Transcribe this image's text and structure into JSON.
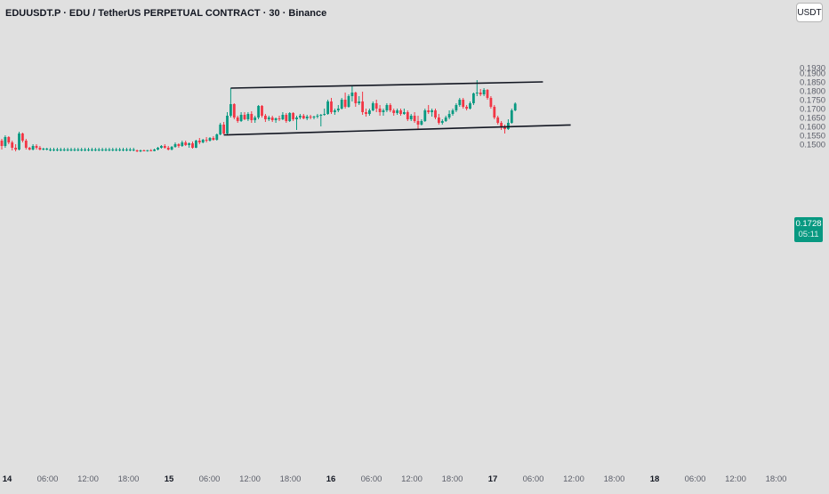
{
  "symbol_title": "EDUUSDT.P · EDU / TetherUS PERPETUAL CONTRACT · 30 · Binance",
  "currency_label": "USDT",
  "last_price": "0.1728",
  "countdown": "05:11",
  "colors": {
    "background": "#e0e0e0",
    "up": "#089981",
    "down": "#f23645",
    "trendline": "#131722",
    "axis_text": "#5d606b"
  },
  "chart_data": {
    "type": "candlestick",
    "title": "EDUUSDT.P · EDU / TetherUS PERPETUAL CONTRACT · 30 · Binance",
    "timeframe": "30",
    "exchange": "Binance",
    "y_axis": {
      "position": "right",
      "tick_labels": [
        "0.1930",
        "0.1900",
        "0.1850",
        "0.1800",
        "0.1750",
        "0.1700",
        "0.1650",
        "0.1600",
        "0.1550",
        "0.1500"
      ]
    },
    "x_axis": {
      "tick_labels": [
        "14",
        "06:00",
        "12:00",
        "18:00",
        "15",
        "06:00",
        "12:00",
        "18:00",
        "16",
        "06:00",
        "12:00",
        "18:00",
        "17",
        "06:00",
        "12:00",
        "18:00",
        "18",
        "06:00",
        "12:00",
        "18:00"
      ],
      "bold_labels": [
        "14",
        "15",
        "16",
        "17",
        "18"
      ]
    },
    "ohlc": [
      [
        0.152,
        0.153,
        0.147,
        0.149
      ],
      [
        0.149,
        0.155,
        0.148,
        0.154
      ],
      [
        0.154,
        0.1545,
        0.15,
        0.151
      ],
      [
        0.151,
        0.152,
        0.1465,
        0.148
      ],
      [
        0.148,
        0.15,
        0.146,
        0.147
      ],
      [
        0.147,
        0.157,
        0.1465,
        0.156
      ],
      [
        0.156,
        0.1565,
        0.151,
        0.152
      ],
      [
        0.152,
        0.153,
        0.147,
        0.148
      ],
      [
        0.148,
        0.1485,
        0.1465,
        0.147
      ],
      [
        0.147,
        0.15,
        0.1465,
        0.149
      ],
      [
        0.149,
        0.15,
        0.147,
        0.148
      ],
      [
        0.148,
        0.149,
        0.1465,
        0.147
      ],
      [
        0.147,
        0.148,
        0.1465,
        0.1475
      ],
      [
        0.147,
        0.148,
        0.1465,
        0.1475
      ],
      [
        0.147,
        0.148,
        0.146,
        0.147
      ],
      [
        0.147,
        0.148,
        0.146,
        0.147
      ],
      [
        0.147,
        0.148,
        0.146,
        0.147
      ],
      [
        0.147,
        0.148,
        0.146,
        0.147
      ],
      [
        0.147,
        0.148,
        0.146,
        0.147
      ],
      [
        0.147,
        0.148,
        0.146,
        0.147
      ],
      [
        0.147,
        0.148,
        0.146,
        0.147
      ],
      [
        0.147,
        0.148,
        0.146,
        0.147
      ],
      [
        0.147,
        0.148,
        0.146,
        0.147
      ],
      [
        0.147,
        0.148,
        0.146,
        0.147
      ],
      [
        0.147,
        0.148,
        0.146,
        0.147
      ],
      [
        0.147,
        0.148,
        0.146,
        0.147
      ],
      [
        0.147,
        0.148,
        0.146,
        0.147
      ],
      [
        0.147,
        0.148,
        0.146,
        0.147
      ],
      [
        0.147,
        0.148,
        0.146,
        0.147
      ],
      [
        0.147,
        0.148,
        0.146,
        0.147
      ],
      [
        0.147,
        0.148,
        0.146,
        0.147
      ],
      [
        0.147,
        0.148,
        0.146,
        0.147
      ],
      [
        0.147,
        0.148,
        0.146,
        0.147
      ],
      [
        0.147,
        0.148,
        0.146,
        0.147
      ],
      [
        0.147,
        0.148,
        0.146,
        0.147
      ],
      [
        0.147,
        0.148,
        0.146,
        0.147
      ],
      [
        0.147,
        0.148,
        0.146,
        0.147
      ],
      [
        0.147,
        0.148,
        0.146,
        0.147
      ],
      [
        0.147,
        0.148,
        0.146,
        0.147
      ],
      [
        0.1465,
        0.147,
        0.1455,
        0.146
      ],
      [
        0.146,
        0.147,
        0.1455,
        0.1465
      ],
      [
        0.1465,
        0.147,
        0.146,
        0.1462
      ],
      [
        0.1462,
        0.1468,
        0.1458,
        0.1466
      ],
      [
        0.1466,
        0.1472,
        0.146,
        0.1462
      ],
      [
        0.1462,
        0.1475,
        0.146,
        0.147
      ],
      [
        0.147,
        0.1485,
        0.1465,
        0.148
      ],
      [
        0.148,
        0.1495,
        0.1475,
        0.149
      ],
      [
        0.149,
        0.15,
        0.1475,
        0.148
      ],
      [
        0.148,
        0.149,
        0.1465,
        0.147
      ],
      [
        0.147,
        0.149,
        0.1465,
        0.1485
      ],
      [
        0.1485,
        0.151,
        0.148,
        0.15
      ],
      [
        0.15,
        0.1505,
        0.148,
        0.149
      ],
      [
        0.149,
        0.152,
        0.1485,
        0.151
      ],
      [
        0.151,
        0.152,
        0.149,
        0.1495
      ],
      [
        0.1495,
        0.151,
        0.148,
        0.1505
      ],
      [
        0.1505,
        0.1515,
        0.1475,
        0.148
      ],
      [
        0.148,
        0.1525,
        0.1478,
        0.152
      ],
      [
        0.152,
        0.1535,
        0.15,
        0.151
      ],
      [
        0.151,
        0.153,
        0.1505,
        0.1525
      ],
      [
        0.1525,
        0.154,
        0.151,
        0.152
      ],
      [
        0.152,
        0.154,
        0.1515,
        0.1535
      ],
      [
        0.1535,
        0.1545,
        0.152,
        0.1525
      ],
      [
        0.1525,
        0.156,
        0.152,
        0.1555
      ],
      [
        0.1555,
        0.162,
        0.155,
        0.161
      ],
      [
        0.161,
        0.1625,
        0.1555,
        0.156
      ],
      [
        0.156,
        0.168,
        0.155,
        0.166
      ],
      [
        0.166,
        0.1815,
        0.165,
        0.1725
      ],
      [
        0.1725,
        0.173,
        0.164,
        0.165
      ],
      [
        0.165,
        0.166,
        0.162,
        0.163
      ],
      [
        0.163,
        0.168,
        0.1625,
        0.1665
      ],
      [
        0.1665,
        0.168,
        0.1635,
        0.164
      ],
      [
        0.164,
        0.168,
        0.163,
        0.167
      ],
      [
        0.167,
        0.1685,
        0.162,
        0.1635
      ],
      [
        0.1635,
        0.166,
        0.162,
        0.165
      ],
      [
        0.165,
        0.172,
        0.164,
        0.1715
      ],
      [
        0.1715,
        0.172,
        0.165,
        0.166
      ],
      [
        0.166,
        0.167,
        0.1625,
        0.164
      ],
      [
        0.164,
        0.166,
        0.163,
        0.165
      ],
      [
        0.165,
        0.166,
        0.1625,
        0.1635
      ],
      [
        0.1635,
        0.165,
        0.162,
        0.1645
      ],
      [
        0.1645,
        0.166,
        0.163,
        0.164
      ],
      [
        0.164,
        0.168,
        0.1635,
        0.1665
      ],
      [
        0.1665,
        0.1675,
        0.162,
        0.163
      ],
      [
        0.163,
        0.168,
        0.1625,
        0.1675
      ],
      [
        0.1675,
        0.168,
        0.163,
        0.164
      ],
      [
        0.164,
        0.166,
        0.158,
        0.165
      ],
      [
        0.165,
        0.167,
        0.164,
        0.166
      ],
      [
        0.166,
        0.167,
        0.164,
        0.1645
      ],
      [
        0.1645,
        0.1665,
        0.1635,
        0.1655
      ],
      [
        0.1655,
        0.1665,
        0.164,
        0.165
      ],
      [
        0.165,
        0.166,
        0.164,
        0.1655
      ],
      [
        0.1655,
        0.167,
        0.1645,
        0.166
      ],
      [
        0.166,
        0.167,
        0.16,
        0.1665
      ],
      [
        0.1665,
        0.17,
        0.166,
        0.167
      ],
      [
        0.167,
        0.175,
        0.1665,
        0.174
      ],
      [
        0.174,
        0.176,
        0.167,
        0.168
      ],
      [
        0.168,
        0.17,
        0.1665,
        0.169
      ],
      [
        0.169,
        0.172,
        0.168,
        0.17
      ],
      [
        0.17,
        0.176,
        0.1695,
        0.175
      ],
      [
        0.175,
        0.179,
        0.17,
        0.171
      ],
      [
        0.171,
        0.178,
        0.1705,
        0.177
      ],
      [
        0.177,
        0.183,
        0.174,
        0.179
      ],
      [
        0.179,
        0.1795,
        0.171,
        0.173
      ],
      [
        0.173,
        0.177,
        0.172,
        0.174
      ],
      [
        0.174,
        0.1795,
        0.1665,
        0.168
      ],
      [
        0.168,
        0.17,
        0.1655,
        0.167
      ],
      [
        0.167,
        0.17,
        0.166,
        0.169
      ],
      [
        0.169,
        0.174,
        0.1685,
        0.173
      ],
      [
        0.173,
        0.175,
        0.168,
        0.17
      ],
      [
        0.17,
        0.172,
        0.166,
        0.168
      ],
      [
        0.168,
        0.17,
        0.166,
        0.169
      ],
      [
        0.169,
        0.173,
        0.168,
        0.172
      ],
      [
        0.172,
        0.173,
        0.168,
        0.169
      ],
      [
        0.169,
        0.17,
        0.166,
        0.1675
      ],
      [
        0.1675,
        0.17,
        0.1665,
        0.169
      ],
      [
        0.169,
        0.17,
        0.166,
        0.167
      ],
      [
        0.167,
        0.17,
        0.1665,
        0.168
      ],
      [
        0.168,
        0.169,
        0.163,
        0.164
      ],
      [
        0.164,
        0.167,
        0.163,
        0.166
      ],
      [
        0.166,
        0.168,
        0.162,
        0.163
      ],
      [
        0.163,
        0.166,
        0.1585,
        0.161
      ],
      [
        0.161,
        0.164,
        0.1605,
        0.163
      ],
      [
        0.163,
        0.17,
        0.1625,
        0.169
      ],
      [
        0.169,
        0.172,
        0.167,
        0.168
      ],
      [
        0.168,
        0.17,
        0.1655,
        0.169
      ],
      [
        0.169,
        0.17,
        0.164,
        0.165
      ],
      [
        0.165,
        0.167,
        0.161,
        0.162
      ],
      [
        0.162,
        0.164,
        0.161,
        0.163
      ],
      [
        0.163,
        0.166,
        0.1625,
        0.165
      ],
      [
        0.165,
        0.169,
        0.164,
        0.167
      ],
      [
        0.167,
        0.17,
        0.166,
        0.169
      ],
      [
        0.169,
        0.173,
        0.168,
        0.172
      ],
      [
        0.172,
        0.176,
        0.171,
        0.175
      ],
      [
        0.175,
        0.176,
        0.17,
        0.171
      ],
      [
        0.171,
        0.172,
        0.169,
        0.17
      ],
      [
        0.17,
        0.174,
        0.1695,
        0.173
      ],
      [
        0.173,
        0.179,
        0.172,
        0.1785
      ],
      [
        0.1785,
        0.186,
        0.177,
        0.179
      ],
      [
        0.179,
        0.181,
        0.177,
        0.178
      ],
      [
        0.178,
        0.1815,
        0.177,
        0.1805
      ],
      [
        0.1805,
        0.181,
        0.175,
        0.176
      ],
      [
        0.176,
        0.177,
        0.17,
        0.171
      ],
      [
        0.171,
        0.172,
        0.164,
        0.165
      ],
      [
        0.165,
        0.166,
        0.161,
        0.162
      ],
      [
        0.162,
        0.163,
        0.158,
        0.16
      ],
      [
        0.16,
        0.161,
        0.156,
        0.1585
      ],
      [
        0.1585,
        0.164,
        0.158,
        0.162
      ],
      [
        0.162,
        0.17,
        0.1615,
        0.169
      ],
      [
        0.169,
        0.1735,
        0.1685,
        0.1728
      ]
    ],
    "trendlines": [
      {
        "name": "upper-channel",
        "p1": {
          "bar": 66,
          "price": 0.1815
        },
        "p2": {
          "bar": 156,
          "price": 0.185
        }
      },
      {
        "name": "lower-channel",
        "p1": {
          "bar": 64,
          "price": 0.1552
        },
        "p2": {
          "bar": 164,
          "price": 0.1608
        }
      }
    ]
  }
}
